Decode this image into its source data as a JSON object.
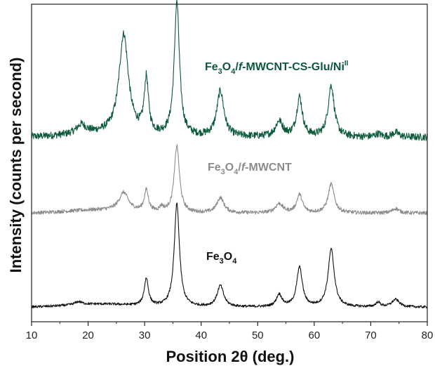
{
  "chart_data": {
    "type": "line",
    "xlabel": "Position 2θ (deg.)",
    "ylabel": "Intensity (counts per second)",
    "xlim": [
      10,
      80
    ],
    "x_ticks": [
      10,
      20,
      30,
      40,
      50,
      60,
      70,
      80
    ],
    "y_ticks_shown": false,
    "grid": false,
    "legend": "none",
    "series": [
      {
        "name": "Fe3O4/f-MWCNT-CS-Glu/NiII",
        "label_parts": {
          "a": "Fe",
          "a_sub": "3",
          "b": "O",
          "b_sub": "4",
          "c": "/",
          "d": "f",
          "e": "-MWCNT-CS-Glu/Ni",
          "e_sup": "II"
        },
        "color": "#0b5a3a",
        "baseline": 0.58,
        "noise": 0.012,
        "peaks": [
          {
            "x": 18.8,
            "h": 0.03,
            "w": 1.0
          },
          {
            "x": 26.3,
            "h": 0.33,
            "w": 1.0
          },
          {
            "x": 30.3,
            "h": 0.18,
            "w": 0.45
          },
          {
            "x": 35.7,
            "h": 0.44,
            "w": 0.55
          },
          {
            "x": 43.4,
            "h": 0.15,
            "w": 0.75
          },
          {
            "x": 53.8,
            "h": 0.05,
            "w": 0.8
          },
          {
            "x": 57.4,
            "h": 0.13,
            "w": 0.6
          },
          {
            "x": 63.0,
            "h": 0.17,
            "w": 0.65
          },
          {
            "x": 71.3,
            "h": 0.01,
            "w": 0.6
          },
          {
            "x": 74.4,
            "h": 0.015,
            "w": 0.7
          }
        ]
      },
      {
        "name": "Fe3O4/f-MWCNT",
        "label_parts": {
          "a": "Fe",
          "a_sub": "3",
          "b": "O",
          "b_sub": "4",
          "c": "/",
          "d": "f",
          "e": "-MWCNT",
          "e_sup": ""
        },
        "color": "#8c8c8c",
        "baseline": 0.33,
        "noise": 0.006,
        "peaks": [
          {
            "x": 26.3,
            "h": 0.06,
            "w": 1.0
          },
          {
            "x": 30.3,
            "h": 0.07,
            "w": 0.45
          },
          {
            "x": 33.0,
            "h": 0.015,
            "w": 0.4
          },
          {
            "x": 35.7,
            "h": 0.22,
            "w": 0.55
          },
          {
            "x": 43.4,
            "h": 0.05,
            "w": 0.75
          },
          {
            "x": 53.8,
            "h": 0.03,
            "w": 0.8
          },
          {
            "x": 57.4,
            "h": 0.06,
            "w": 0.6
          },
          {
            "x": 63.0,
            "h": 0.095,
            "w": 0.65
          },
          {
            "x": 74.4,
            "h": 0.015,
            "w": 0.7
          }
        ]
      },
      {
        "name": "Fe3O4",
        "label_parts": {
          "a": "Fe",
          "a_sub": "3",
          "b": "O",
          "b_sub": "4",
          "c": "",
          "d": "",
          "e": "",
          "e_sup": ""
        },
        "color": "#111111",
        "baseline": 0.02,
        "noise": 0.004,
        "peaks": [
          {
            "x": 18.3,
            "h": 0.01,
            "w": 0.8
          },
          {
            "x": 30.3,
            "h": 0.09,
            "w": 0.45
          },
          {
            "x": 35.7,
            "h": 0.34,
            "w": 0.55
          },
          {
            "x": 43.4,
            "h": 0.07,
            "w": 0.7
          },
          {
            "x": 53.8,
            "h": 0.04,
            "w": 0.6
          },
          {
            "x": 57.4,
            "h": 0.13,
            "w": 0.6
          },
          {
            "x": 63.0,
            "h": 0.19,
            "w": 0.65
          },
          {
            "x": 71.3,
            "h": 0.015,
            "w": 0.5
          },
          {
            "x": 74.4,
            "h": 0.025,
            "w": 0.8
          }
        ]
      }
    ]
  }
}
